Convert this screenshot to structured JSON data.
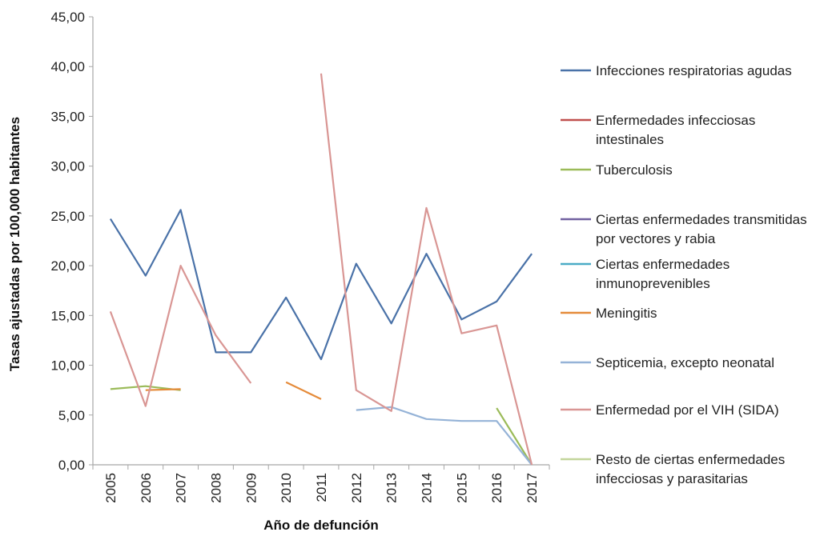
{
  "chart_data": {
    "type": "line",
    "title": "",
    "xlabel": "Año de defunción",
    "ylabel": "Tasas ajustadas por 100,000 habitantes",
    "ylim": [
      0,
      45
    ],
    "yticks": [
      "0,00",
      "5,00",
      "10,00",
      "15,00",
      "20,00",
      "25,00",
      "30,00",
      "35,00",
      "40,00",
      "45,00"
    ],
    "grid": false,
    "legend_position": "right",
    "categories": [
      "2005",
      "2006",
      "2007",
      "2008",
      "2009",
      "2010",
      "2011",
      "2012",
      "2013",
      "2014",
      "2015",
      "2016",
      "2017"
    ],
    "series": [
      {
        "name": "Infecciones respiratorias agudas",
        "legend_lines": [
          "Infecciones respiratorias agudas"
        ],
        "color": "#4a72a8",
        "values": [
          24.7,
          19.0,
          25.6,
          11.3,
          11.3,
          16.8,
          10.6,
          20.2,
          14.2,
          21.2,
          14.6,
          16.4,
          21.2
        ]
      },
      {
        "name": "Enfermedades infecciosas intestinales",
        "legend_lines": [
          "Enfermedades infecciosas",
          "intestinales"
        ],
        "color": "#c0504d",
        "values": [
          null,
          null,
          null,
          null,
          null,
          null,
          null,
          null,
          null,
          null,
          null,
          null,
          null
        ]
      },
      {
        "name": "Tuberculosis",
        "legend_lines": [
          "Tuberculosis"
        ],
        "color": "#9bbb59",
        "values": [
          7.6,
          7.9,
          7.5,
          null,
          null,
          null,
          null,
          null,
          null,
          null,
          null,
          5.7,
          0.0
        ]
      },
      {
        "name": "Ciertas enfermedades transmitidas por vectores y rabia",
        "legend_lines": [
          "Ciertas enfermedades transmitidas",
          "por vectores y rabia"
        ],
        "color": "#7160a0",
        "values": [
          null,
          null,
          null,
          null,
          null,
          null,
          null,
          null,
          null,
          null,
          null,
          null,
          null
        ]
      },
      {
        "name": "Ciertas enfermedades inmunoprevenibles",
        "legend_lines": [
          "Ciertas enfermedades",
          "inmunoprevenibles"
        ],
        "color": "#4bacc6",
        "values": [
          null,
          null,
          null,
          null,
          null,
          null,
          null,
          null,
          null,
          null,
          null,
          null,
          null
        ]
      },
      {
        "name": "Meningitis",
        "legend_lines": [
          "Meningitis"
        ],
        "color": "#e58b3a",
        "values": [
          null,
          7.5,
          7.6,
          null,
          null,
          8.3,
          6.6,
          null,
          null,
          null,
          null,
          null,
          null
        ]
      },
      {
        "name": "Septicemia, excepto neonatal",
        "legend_lines": [
          "Septicemia, excepto neonatal"
        ],
        "color": "#95b3d7",
        "values": [
          null,
          null,
          null,
          null,
          null,
          null,
          null,
          5.5,
          5.8,
          4.6,
          4.4,
          4.4,
          0.0
        ]
      },
      {
        "name": "Enfermedad por el VIH (SIDA)",
        "legend_lines": [
          "Enfermedad por el VIH (SIDA)"
        ],
        "color": "#d99694",
        "values": [
          15.4,
          5.9,
          20.0,
          13.0,
          8.2,
          null,
          39.3,
          7.5,
          5.4,
          25.8,
          13.2,
          14.0,
          0.0
        ]
      },
      {
        "name": "Resto de ciertas enfermedades infecciosas y parasitarias",
        "legend_lines": [
          "Resto de ciertas enfermedades",
          "infecciosas y parasitarias"
        ],
        "color": "#c3d69b",
        "values": [
          null,
          null,
          null,
          null,
          null,
          null,
          null,
          null,
          null,
          null,
          null,
          null,
          null
        ]
      }
    ]
  }
}
